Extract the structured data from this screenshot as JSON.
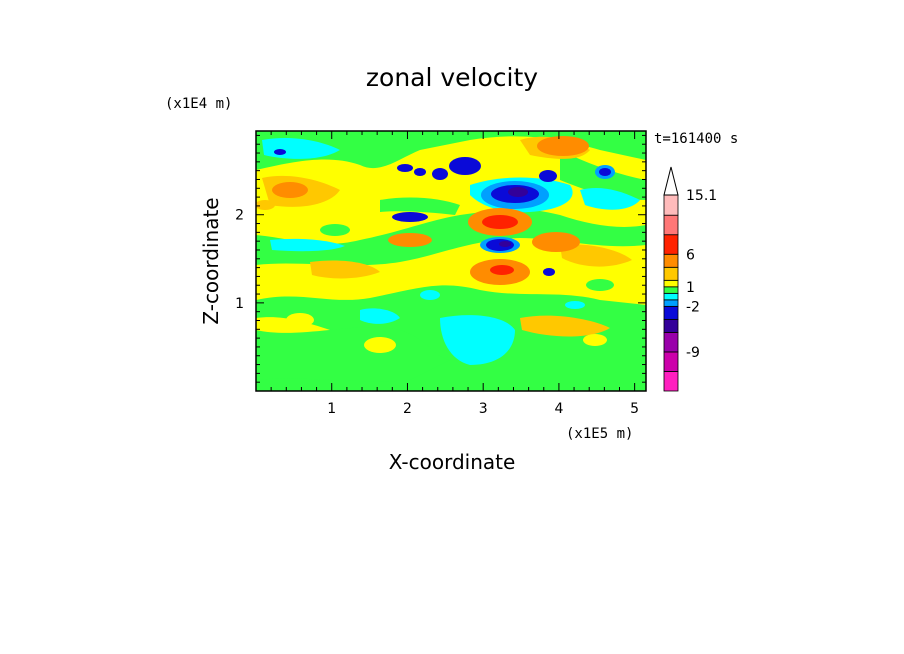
{
  "chart_data": {
    "type": "heatmap",
    "title": "zonal velocity",
    "xlabel": "X-coordinate",
    "ylabel": "Z-coordinate",
    "x_scale_note": "(x1E5 m)",
    "y_scale_note": "(x1E4 m)",
    "time_label": "t=161400 s",
    "xlim": [
      0,
      5.15
    ],
    "ylim": [
      0,
      2.95
    ],
    "x_ticks": [
      "1",
      "2",
      "3",
      "4",
      "5"
    ],
    "y_ticks": [
      "1",
      "2"
    ],
    "colorbar": {
      "labels": [
        "15.1",
        "6",
        "1",
        "-2",
        "-9"
      ],
      "levels": [
        -15,
        -12,
        -9,
        -6,
        -4,
        -2,
        -1,
        0,
        1,
        2,
        4,
        6,
        9,
        12,
        15.1
      ],
      "colors": [
        "#ff1fbf",
        "#cc00aa",
        "#9900aa",
        "#330099",
        "#0a0ad8",
        "#00a0ff",
        "#00ffff",
        "#33ff44",
        "#ffff00",
        "#ffc800",
        "#ff8c00",
        "#ff2200",
        "#ff7777",
        "#ffbbbb",
        "#ffffff"
      ]
    },
    "features": [
      {
        "kind": "negative-core",
        "x": 3.3,
        "z": 2.25,
        "value": -9
      },
      {
        "kind": "negative-core",
        "x": 3.25,
        "z": 1.66,
        "value": -9
      },
      {
        "kind": "negative-core",
        "x": 2.6,
        "z": 2.55,
        "value": -6
      },
      {
        "kind": "negative-core",
        "x": 4.6,
        "z": 2.55,
        "value": -6
      },
      {
        "kind": "positive-core",
        "x": 3.3,
        "z": 1.96,
        "value": 6
      },
      {
        "kind": "positive-core",
        "x": 3.2,
        "z": 1.35,
        "value": 6
      },
      {
        "kind": "positive-core",
        "x": 4.0,
        "z": 1.68,
        "value": 4
      },
      {
        "kind": "positive-core",
        "x": 4.0,
        "z": 2.85,
        "value": 4
      },
      {
        "kind": "weak-negative",
        "x": 3.3,
        "z": 0.6,
        "value": -1
      }
    ]
  }
}
